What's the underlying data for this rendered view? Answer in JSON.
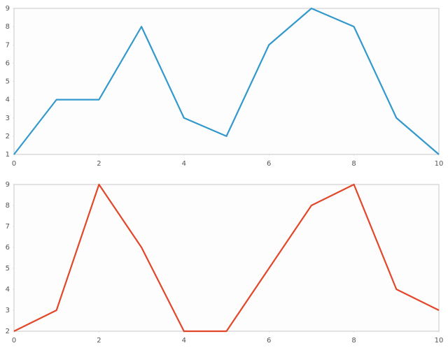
{
  "chart_data": [
    {
      "type": "line",
      "x": [
        0,
        1,
        2,
        3,
        4,
        5,
        6,
        7,
        8,
        9,
        10
      ],
      "values": [
        1,
        4,
        4,
        8,
        3,
        2,
        7,
        9,
        8,
        3,
        1
      ],
      "color": "#3399cc",
      "xlim": [
        0,
        10
      ],
      "xticks": [
        0,
        2,
        4,
        6,
        8,
        10
      ],
      "ylim": [
        1,
        9
      ],
      "yticks": [
        1,
        2,
        3,
        4,
        5,
        6,
        7,
        8,
        9
      ],
      "grid": false
    },
    {
      "type": "line",
      "x": [
        0,
        1,
        2,
        3,
        4,
        5,
        6,
        7,
        8,
        9,
        10
      ],
      "values": [
        2,
        3,
        9,
        6,
        2,
        2,
        5,
        8,
        9,
        4,
        3
      ],
      "color": "#e2472a",
      "xlim": [
        0,
        10
      ],
      "xticks": [
        0,
        2,
        4,
        6,
        8,
        10
      ],
      "ylim": [
        2,
        9
      ],
      "yticks": [
        2,
        3,
        4,
        5,
        6,
        7,
        8,
        9
      ],
      "grid": false
    }
  ]
}
